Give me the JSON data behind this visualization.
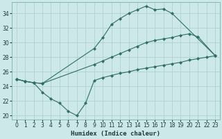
{
  "xlabel": "Humidex (Indice chaleur)",
  "bg_color": "#cce8e8",
  "grid_color": "#b0d0d0",
  "line_color": "#2e6e68",
  "lx1": [
    0,
    1,
    2,
    3,
    9,
    10,
    11,
    12,
    13,
    14,
    15,
    16,
    17,
    18,
    23
  ],
  "ly1": [
    25.0,
    24.7,
    24.5,
    24.4,
    29.2,
    30.7,
    32.5,
    33.3,
    34.0,
    34.5,
    35.0,
    34.5,
    34.6,
    34.0,
    28.2
  ],
  "lx2": [
    0,
    1,
    2,
    3,
    9,
    10,
    11,
    12,
    13,
    14,
    15,
    16,
    17,
    18,
    19,
    20,
    21,
    23
  ],
  "ly2": [
    25.0,
    24.7,
    24.5,
    24.4,
    27.0,
    27.5,
    28.0,
    28.5,
    29.0,
    29.5,
    30.0,
    30.3,
    30.5,
    30.7,
    31.0,
    31.2,
    30.8,
    28.2
  ],
  "lx3": [
    0,
    1,
    2,
    3,
    4,
    5,
    6,
    7,
    8,
    9,
    10,
    11,
    12,
    13,
    14,
    15,
    16,
    17,
    18,
    19,
    20,
    21,
    22,
    23
  ],
  "ly3": [
    25.0,
    24.7,
    24.5,
    23.2,
    22.3,
    21.7,
    20.6,
    20.0,
    21.7,
    24.8,
    25.2,
    25.5,
    25.8,
    26.0,
    26.3,
    26.5,
    26.7,
    26.9,
    27.1,
    27.3,
    27.6,
    27.8,
    28.0,
    28.2
  ],
  "xlim": [
    -0.5,
    23.5
  ],
  "ylim": [
    19.5,
    35.5
  ],
  "xticks": [
    0,
    1,
    2,
    3,
    4,
    5,
    6,
    7,
    8,
    9,
    10,
    11,
    12,
    13,
    14,
    15,
    16,
    17,
    18,
    19,
    20,
    21,
    22,
    23
  ],
  "yticks": [
    20,
    22,
    24,
    26,
    28,
    30,
    32,
    34
  ],
  "figsize": [
    3.2,
    2.0
  ],
  "dpi": 100
}
